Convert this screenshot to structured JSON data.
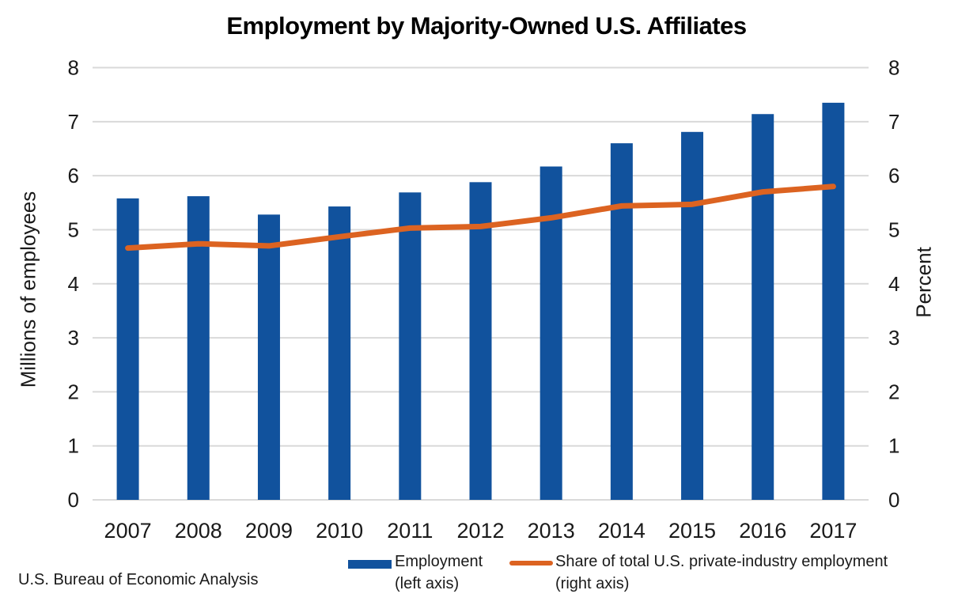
{
  "title": "Employment by Majority-Owned U.S. Affiliates",
  "footer": {
    "source": "U.S. Bureau of Economic Analysis"
  },
  "legend": {
    "items": [
      {
        "label": "Employment",
        "sublabel": "(left axis)",
        "swatch": "bar",
        "color": "#11529D"
      },
      {
        "label": "Share of total U.S. private-industry employment",
        "sublabel": "(right axis)",
        "swatch": "line",
        "color": "#DC6321"
      }
    ]
  },
  "colors": {
    "bar": "#11529D",
    "line": "#DC6321",
    "gridline": "#D9D9D9",
    "tick_text": "#1a1a1a",
    "background": "#ffffff"
  },
  "chart_data": {
    "type": "bar",
    "subtype": "combo-bar-line-dual-axis",
    "title": "Employment by Majority-Owned U.S. Affiliates",
    "categories": [
      "2007",
      "2008",
      "2009",
      "2010",
      "2011",
      "2012",
      "2013",
      "2014",
      "2015",
      "2016",
      "2017"
    ],
    "series": [
      {
        "name": "Employment (left axis)",
        "type": "bar",
        "axis": "left",
        "color": "#11529D",
        "values": [
          5.58,
          5.62,
          5.28,
          5.43,
          5.69,
          5.88,
          6.17,
          6.6,
          6.81,
          7.14,
          7.35
        ]
      },
      {
        "name": "Share of total U.S. private-industry employment (right axis)",
        "type": "line",
        "axis": "right",
        "color": "#DC6321",
        "values": [
          4.66,
          4.74,
          4.7,
          4.87,
          5.03,
          5.06,
          5.22,
          5.44,
          5.47,
          5.7,
          5.8
        ]
      }
    ],
    "xlabel": "",
    "ylabel": "Millions of employees",
    "ylabel_right": "Percent",
    "ylim_left": [
      0,
      8
    ],
    "ylim_right": [
      0,
      8
    ],
    "yticks": [
      0,
      1,
      2,
      3,
      4,
      5,
      6,
      7,
      8
    ],
    "grid": true,
    "legend_position": "bottom"
  }
}
